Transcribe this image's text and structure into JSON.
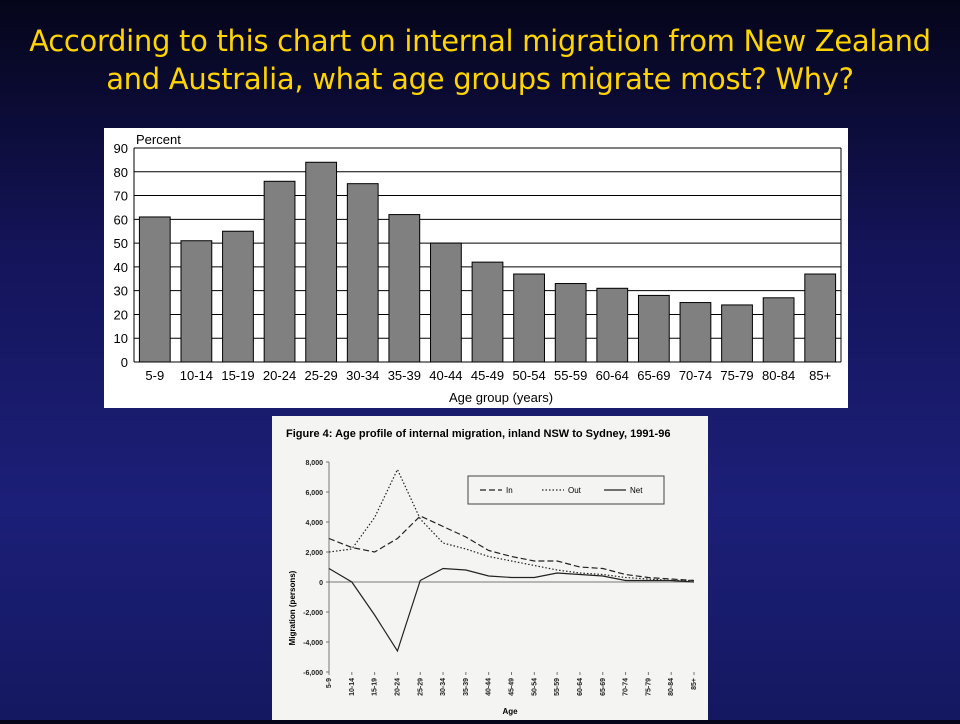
{
  "slide": {
    "title": "According to this chart on internal migration from New Zealand and Australia, what age groups migrate most? Why?"
  },
  "colors": {
    "title": "#ffd400",
    "bar": "#808080",
    "background": "#16186a"
  },
  "chart_data": [
    {
      "type": "bar",
      "title": "",
      "ylabel": "Percent",
      "xlabel": "Age group (years)",
      "ylim": [
        0,
        90
      ],
      "yticks": [
        0,
        10,
        20,
        30,
        40,
        50,
        60,
        70,
        80,
        90
      ],
      "grid": true,
      "categories": [
        "5-9",
        "10-14",
        "15-19",
        "20-24",
        "25-29",
        "30-34",
        "35-39",
        "40-44",
        "45-49",
        "50-54",
        "55-59",
        "60-64",
        "65-69",
        "70-74",
        "75-79",
        "80-84",
        "85+"
      ],
      "values": [
        61,
        51,
        55,
        76,
        84,
        75,
        62,
        50,
        42,
        37,
        33,
        31,
        28,
        25,
        24,
        27,
        37
      ]
    },
    {
      "type": "line",
      "title": "Figure 4: Age profile of internal migration, inland NSW to Sydney, 1991-96",
      "ylabel": "Migration (persons)",
      "xlabel": "Age",
      "ylim": [
        -6000,
        8000
      ],
      "yticks": [
        "8,000",
        "6,000",
        "4,000",
        "2,000",
        "0",
        "-2,000",
        "-4,000",
        "-6,000"
      ],
      "ytick_values": [
        8000,
        6000,
        4000,
        2000,
        0,
        -2000,
        -4000,
        -6000
      ],
      "legend_position": "top-right",
      "categories": [
        "5-9",
        "10-14",
        "15-19",
        "20-24",
        "25-29",
        "30-34",
        "35-39",
        "40-44",
        "45-49",
        "50-54",
        "55-59",
        "60-64",
        "65-69",
        "70-74",
        "75-79",
        "80-84",
        "85+"
      ],
      "series": [
        {
          "name": "In",
          "style": "dashed",
          "values": [
            2900,
            2300,
            2000,
            2900,
            4400,
            3700,
            3000,
            2100,
            1700,
            1400,
            1400,
            1000,
            900,
            500,
            300,
            200,
            100
          ]
        },
        {
          "name": "Out",
          "style": "dotted",
          "values": [
            2000,
            2200,
            4300,
            7500,
            4200,
            2600,
            2200,
            1700,
            1400,
            1100,
            800,
            600,
            500,
            300,
            200,
            100,
            100
          ]
        },
        {
          "name": "Net",
          "style": "solid",
          "values": [
            900,
            0,
            -2200,
            -4600,
            100,
            900,
            800,
            400,
            300,
            300,
            600,
            500,
            400,
            100,
            100,
            100,
            0
          ]
        }
      ]
    }
  ]
}
